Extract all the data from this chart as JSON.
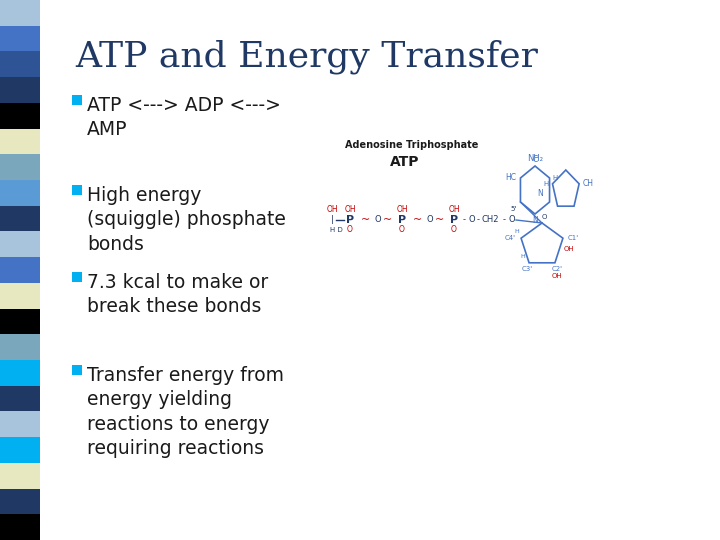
{
  "title": "ATP and Energy Transfer",
  "title_color": "#1F3864",
  "title_fontsize": 26,
  "background_color": "#FFFFFF",
  "bullet_color": "#00B0F0",
  "text_color": "#1A1A1A",
  "bullet_points": [
    "ATP <---> ADP <--->\nAMP",
    "High energy\n(squiggle) phosphate\nbonds",
    "7.3 kcal to make or\nbreak these bonds",
    "Transfer energy from\nenergy yielding\nreactions to energy\nrequiring reactions"
  ],
  "sidebar_colors": [
    "#A8C4DC",
    "#4472C4",
    "#2F5496",
    "#1F3864",
    "#000000",
    "#E8E8C0",
    "#7BA7BC",
    "#5B9BD5",
    "#1F3864",
    "#A8C4DC",
    "#4472C4",
    "#E8E8C0",
    "#000000",
    "#7BA7BC",
    "#00B0F0",
    "#1F3864",
    "#A8C4DC",
    "#00B0F0",
    "#E8E8C0",
    "#1F3864",
    "#000000"
  ],
  "diagram_label": "Adenosine Triphosphate",
  "diagram_atp": "ATP",
  "p_color": "#1F3864",
  "o_color": "#C00000",
  "ring_color": "#4472C4",
  "nh2_color": "#4472C4"
}
